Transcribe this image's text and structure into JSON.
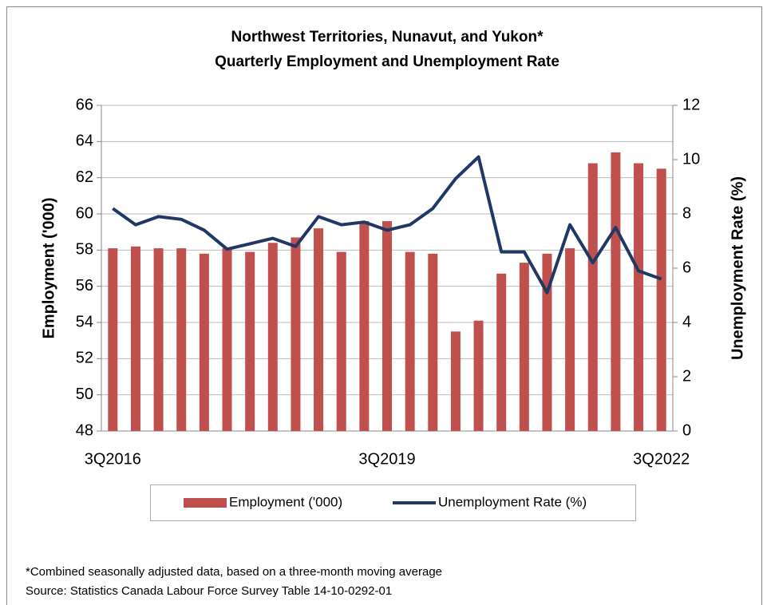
{
  "chart_data": {
    "type": "bar-line",
    "title": [
      "Northwest Territories, Nunavut, and Yukon*",
      "Quarterly Employment and Unemployment Rate"
    ],
    "ylabel": "Employment ('000)",
    "y2label": "Unemployment Rate (%)",
    "categories": [
      "3Q2016",
      null,
      null,
      null,
      null,
      null,
      null,
      null,
      null,
      null,
      null,
      null,
      "3Q2019",
      null,
      null,
      null,
      null,
      null,
      null,
      null,
      null,
      null,
      null,
      null,
      "3Q2022"
    ],
    "series": [
      {
        "name": "Employment ('000)",
        "color": "#c0504d",
        "kind": "bar",
        "values": [
          58.1,
          58.2,
          58.1,
          58.1,
          57.8,
          58.1,
          57.9,
          58.4,
          58.7,
          59.2,
          57.9,
          59.6,
          59.6,
          57.9,
          57.8,
          53.5,
          54.1,
          56.7,
          57.3,
          57.8,
          58.1,
          62.8,
          63.4,
          62.8,
          62.5
        ]
      },
      {
        "name": "Unemployment Rate (%)",
        "color": "#1f3864",
        "kind": "line",
        "axis": "y2",
        "values": [
          8.2,
          7.6,
          7.9,
          7.8,
          7.4,
          6.7,
          6.9,
          7.1,
          6.8,
          7.9,
          7.6,
          7.7,
          7.4,
          7.6,
          8.2,
          9.3,
          10.1,
          6.6,
          6.6,
          5.1,
          7.6,
          6.2,
          7.5,
          5.9,
          5.6
        ]
      }
    ],
    "ylim": [
      48,
      66
    ],
    "yticks": [
      48,
      50,
      52,
      54,
      56,
      58,
      60,
      62,
      64,
      66
    ],
    "y2lim": [
      0,
      12
    ],
    "y2ticks": [
      0,
      2,
      4,
      6,
      8,
      10,
      12
    ],
    "grid": true,
    "legend": "bottom",
    "notes": [
      "*Combined seasonally adjusted data, based on a three-month moving average",
      "Source: Statistics Canada Labour Force Survey Table 14-10-0292-01"
    ]
  }
}
